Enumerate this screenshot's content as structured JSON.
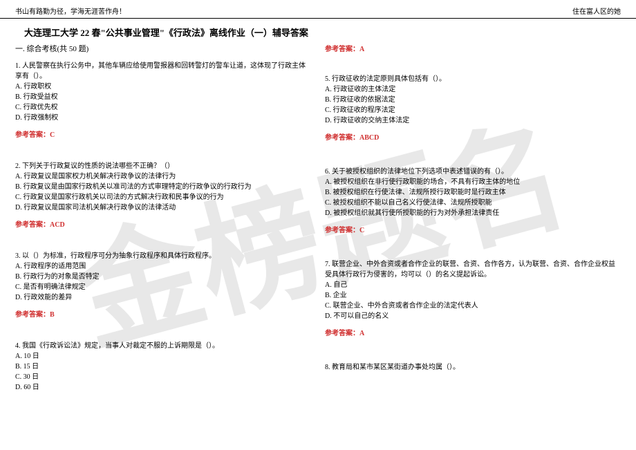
{
  "watermark": "金榜题名",
  "header_left": "书山有路勤为径，学海无涯苦作舟！",
  "header_right": "住在富人区的她",
  "title": "大连理工大学 22 春\"公共事业管理\"《行政法》离线作业（一）辅导答案",
  "section_label": "一. 综合考核(共 50 题)",
  "answer_label": "参考答案：",
  "q1": {
    "stem": "1. 人民警察在执行公务中，其他车辆应给使用警报器和回转警灯的警车让道，这体现了行政主体享有（）。",
    "a": "A. 行政职权",
    "b": "B. 行政受益权",
    "c": "C. 行政优先权",
    "d": "D. 行政强制权",
    "ans": "C"
  },
  "q2": {
    "stem": "2. 下列关于行政复议的性质的说法哪些不正确？（）",
    "a": "A. 行政复议是国家权力机关解决行政争议的法律行为",
    "b": "B. 行政复议是由国家行政机关以准司法的方式审理特定的行政争议的行政行为",
    "c": "C. 行政复议是国家行政机关以司法的方式解决行政和民事争议的行为",
    "d": "D. 行政复议是国家司法机关解决行政争议的法律活动",
    "ans": "ACD"
  },
  "q3": {
    "stem": "3. 以（）为标准，行政程序可分为抽象行政程序和具体行政程序。",
    "a": "A. 行政程序的适用范围",
    "b": "B. 行政行为的对象是否特定",
    "c": "C. 是否有明确法律规定",
    "d": "D. 行政效能的差异",
    "ans": "B"
  },
  "q4": {
    "stem": "4. 我国《行政诉讼法》规定，当事人对裁定不服的上诉期限是（）。",
    "a": "A. 10 日",
    "b": "B. 15 日",
    "c": "C. 30 日",
    "d": "D. 60 日"
  },
  "r_top_ans": "A",
  "q5": {
    "stem": "5. 行政征收的法定原则具体包括有（）。",
    "a": "A. 行政征收的主体法定",
    "b": "B. 行政征收的依据法定",
    "c": "C. 行政征收的程序法定",
    "d": "D. 行政征收的交纳主体法定",
    "ans": "ABCD"
  },
  "q6": {
    "stem": "6. 关于被授权组织的法律地位下列选项中表述错误的有（）。",
    "a": "A. 被授权组织在非行使行政职能的场合，不具有行政主体的地位",
    "b": "B. 被授权组织在行使法律、法规所授行政职能时是行政主体",
    "c": "C. 被授权组织不能以自己名义行使法律、法规所授职能",
    "d": "D. 被授权组织就其行使所授职能的行为对外承担法律责任",
    "ans": "C"
  },
  "q7": {
    "stem": "7. 联营企业、中外合资或者合作企业的联营、合资、合作各方，认为联营、合资、合作企业权益受具体行政行为侵害的，均可以（）的名义提起诉讼。",
    "a": "A. 自己",
    "b": "B. 企业",
    "c": "C. 联营企业、中外合资或者合作企业的法定代表人",
    "d": "D. 不可以自己的名义",
    "ans": "A"
  },
  "q8": {
    "stem": "8. 教育局和某市某区某街道办事处均属（）。"
  },
  "colors": {
    "answer": "#d03030",
    "text": "#000000",
    "watermark": "#e8e8e8",
    "background": "#ffffff"
  }
}
